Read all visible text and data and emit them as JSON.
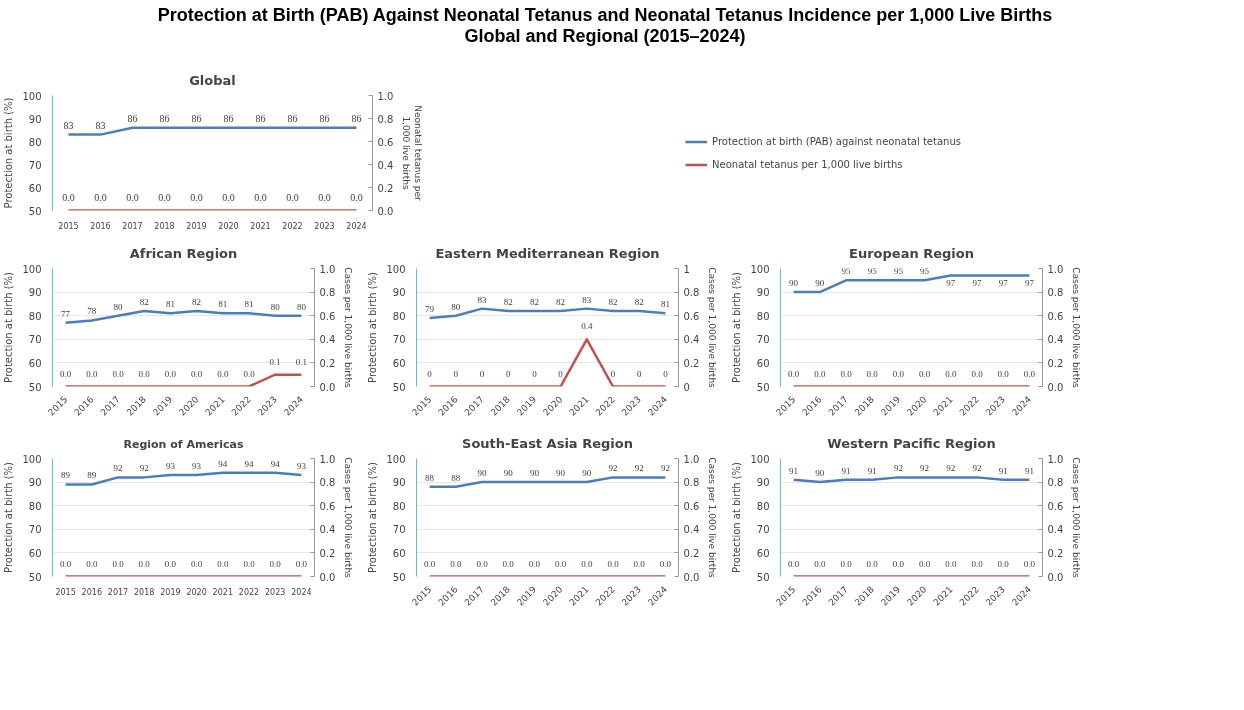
{
  "chart_data": [
    {
      "type": "other",
      "title": "Protection at Birth (PAB) Against Neonatal Tetanus and Neonatal Tetanus Incidence per 1,000 Live Births",
      "subtitle": "Global and Regional (2015–2024)"
    },
    {
      "type": "line",
      "title": "Global",
      "ylabel": "Protection at birth (%)",
      "y2label": "Neonatal tetanus per 1,000 live births",
      "categories": [
        "2015",
        "2016",
        "2017",
        "2018",
        "2019",
        "2020",
        "2021",
        "2022",
        "2023",
        "2024"
      ],
      "ylim": [
        50,
        100
      ],
      "yticks": [
        50,
        60,
        70,
        80,
        90,
        100
      ],
      "y2lim": [
        0,
        1
      ],
      "y2ticks": [
        {
          "value": 0,
          "label": "0.0"
        },
        {
          "value": 0.2,
          "label": "0.2"
        },
        {
          "value": 0.4,
          "label": "0.4"
        },
        {
          "value": 0.6,
          "label": "0.6"
        },
        {
          "value": 0.8,
          "label": "0.8"
        },
        {
          "value": 1,
          "label": "1.0"
        }
      ],
      "grid": false,
      "legend": "right",
      "series": [
        {
          "name": "Protection at birth (PAB) against neonatal tetanus",
          "color": "#4a7ebb",
          "values": [
            83,
            83,
            86,
            86,
            86,
            86,
            86,
            86,
            86,
            86
          ],
          "value_labels": [
            "83",
            "83",
            "86",
            "86",
            "86",
            "86",
            "86",
            "86",
            "86",
            "86"
          ]
        },
        {
          "name": "Neonatal tetanus per 1,000 live births",
          "color": "#c0504d",
          "axis": "y2",
          "values": [
            0,
            0,
            0,
            0,
            0,
            0,
            0,
            0,
            0,
            0
          ],
          "value_labels": [
            "0.0",
            "0.0",
            "0.0",
            "0.0",
            "0.0",
            "0.0",
            "0.0",
            "0.0",
            "0.0",
            "0.0"
          ]
        }
      ]
    },
    {
      "type": "line",
      "title": "African Region",
      "ylabel": "Protection at birth (%)",
      "y2label": "Cases per 1,000 live births",
      "categories": [
        "2015",
        "2016",
        "2017",
        "2018",
        "2019",
        "2020",
        "2021",
        "2022",
        "2023",
        "2024"
      ],
      "ylim": [
        50,
        100
      ],
      "yticks": [
        50,
        60,
        70,
        80,
        90,
        100
      ],
      "y2lim": [
        0,
        1
      ],
      "y2ticks": [
        {
          "value": 0,
          "label": "0.0"
        },
        {
          "value": 0.2,
          "label": "0.2"
        },
        {
          "value": 0.4,
          "label": "0.4"
        },
        {
          "value": 0.6,
          "label": "0.6"
        },
        {
          "value": 0.8,
          "label": "0.8"
        },
        {
          "value": 1,
          "label": "1.0"
        }
      ],
      "grid": "y",
      "legend": false,
      "series": [
        {
          "color": "#4a7ebb",
          "values": [
            77,
            78,
            80,
            82,
            81,
            82,
            81,
            81,
            80,
            80
          ],
          "value_labels": [
            "77",
            "78",
            "80",
            "82",
            "81",
            "82",
            "81",
            "81",
            "80",
            "80"
          ]
        },
        {
          "color": "#c0504d",
          "axis": "y2",
          "values": [
            0,
            0,
            0,
            0,
            0,
            0,
            0,
            0,
            0.1,
            0.1
          ],
          "value_labels": [
            "0.0",
            "0.0",
            "0.0",
            "0.0",
            "0.0",
            "0.0",
            "0.0",
            "0.0",
            "0.1",
            "0.1"
          ]
        }
      ]
    },
    {
      "type": "line",
      "title": "Eastern Mediterranean Region",
      "ylabel": "Protection at birth (%)",
      "y2label": "Cases per 1,000 live births",
      "categories": [
        "2015",
        "2016",
        "2017",
        "2018",
        "2019",
        "2020",
        "2021",
        "2022",
        "2023",
        "2024"
      ],
      "ylim": [
        50,
        100
      ],
      "yticks": [
        50,
        60,
        70,
        80,
        90,
        100
      ],
      "y2lim": [
        0,
        1
      ],
      "y2ticks": [
        0,
        0.2,
        0.4,
        0.6,
        0.8,
        1
      ],
      "grid": "y",
      "legend": false,
      "series": [
        {
          "color": "#4a7ebb",
          "values": [
            79,
            80,
            83,
            82,
            82,
            82,
            83,
            82,
            82,
            81
          ],
          "value_labels": [
            "79",
            "80",
            "83",
            "82",
            "82",
            "82",
            "83",
            "82",
            "82",
            "81"
          ]
        },
        {
          "color": "#c0504d",
          "axis": "y2",
          "values": [
            0,
            0,
            0,
            0,
            0,
            0,
            0.4,
            0,
            0,
            0
          ],
          "value_labels": [
            "0",
            "0",
            "0",
            "0",
            "0",
            "0",
            "0.4",
            "0",
            "0",
            "0"
          ]
        }
      ]
    },
    {
      "type": "line",
      "title": "European Region",
      "ylabel": "Protection at birth (%)",
      "y2label": "Cases per 1,000 live births",
      "categories": [
        "2015",
        "2016",
        "2017",
        "2018",
        "2019",
        "2020",
        "2021",
        "2022",
        "2023",
        "2024"
      ],
      "ylim": [
        50,
        100
      ],
      "yticks": [
        50,
        60,
        70,
        80,
        90,
        100
      ],
      "y2lim": [
        0,
        1
      ],
      "y2ticks": [
        {
          "value": 0,
          "label": "0.0"
        },
        {
          "value": 0.2,
          "label": "0.2"
        },
        {
          "value": 0.4,
          "label": "0.4"
        },
        {
          "value": 0.6,
          "label": "0.6"
        },
        {
          "value": 0.8,
          "label": "0.8"
        },
        {
          "value": 1,
          "label": "1.0"
        }
      ],
      "grid": "y",
      "legend": false,
      "series": [
        {
          "color": "#4a7ebb",
          "values": [
            90,
            90,
            95,
            95,
            95,
            95,
            97,
            97,
            97,
            97
          ],
          "value_labels": [
            "90",
            "90",
            "95",
            "95",
            "95",
            "95",
            "97",
            "97",
            "97",
            "97"
          ]
        },
        {
          "color": "#c0504d",
          "axis": "y2",
          "values": [
            0,
            0,
            0,
            0,
            0,
            0,
            0,
            0,
            0,
            0
          ],
          "value_labels": [
            "0.0",
            "0.0",
            "0.0",
            "0.0",
            "0.0",
            "0.0",
            "0.0",
            "0.0",
            "0.0",
            "0.0"
          ]
        }
      ]
    },
    {
      "type": "line",
      "title": "Region of Americas",
      "ylabel": "Protection at birth (%)",
      "y2label": "Cases per 1,000 live births",
      "categories": [
        "2015",
        "2016",
        "2017",
        "2018",
        "2019",
        "2020",
        "2021",
        "2022",
        "2023",
        "2024"
      ],
      "ylim": [
        50,
        100
      ],
      "yticks": [
        50,
        60,
        70,
        80,
        90,
        100
      ],
      "y2lim": [
        0,
        1
      ],
      "y2ticks": [
        {
          "value": 0,
          "label": "0.0"
        },
        {
          "value": 0.2,
          "label": "0.2"
        },
        {
          "value": 0.4,
          "label": "0.4"
        },
        {
          "value": 0.6,
          "label": "0.6"
        },
        {
          "value": 0.8,
          "label": "0.8"
        },
        {
          "value": 1,
          "label": "1.0"
        }
      ],
      "grid": "y",
      "legend": false,
      "series": [
        {
          "color": "#4a7ebb",
          "values": [
            89,
            89,
            92,
            92,
            93,
            93,
            94,
            94,
            94,
            93
          ],
          "value_labels": [
            "89",
            "89",
            "92",
            "92",
            "93",
            "93",
            "94",
            "94",
            "94",
            "93"
          ]
        },
        {
          "color": "#c0504d",
          "axis": "y2",
          "values": [
            0,
            0,
            0,
            0,
            0,
            0,
            0,
            0,
            0,
            0
          ],
          "value_labels": [
            "0.0",
            "0.0",
            "0.0",
            "0.0",
            "0.0",
            "0.0",
            "0.0",
            "0.0",
            "0.0",
            "0.0"
          ]
        }
      ]
    },
    {
      "type": "line",
      "title": "South-East Asia Region",
      "ylabel": "Protection at birth (%)",
      "y2label": "Cases per 1,000 live births",
      "categories": [
        "2015",
        "2016",
        "2017",
        "2018",
        "2019",
        "2020",
        "2021",
        "2022",
        "2023",
        "2024"
      ],
      "ylim": [
        50,
        100
      ],
      "yticks": [
        50,
        60,
        70,
        80,
        90,
        100
      ],
      "y2lim": [
        0,
        1
      ],
      "y2ticks": [
        {
          "value": 0,
          "label": "0.0"
        },
        {
          "value": 0.2,
          "label": "0.2"
        },
        {
          "value": 0.4,
          "label": "0.4"
        },
        {
          "value": 0.6,
          "label": "0.6"
        },
        {
          "value": 0.8,
          "label": "0.8"
        },
        {
          "value": 1,
          "label": "1.0"
        }
      ],
      "grid": "y",
      "legend": false,
      "series": [
        {
          "color": "#4a7ebb",
          "values": [
            88,
            88,
            90,
            90,
            90,
            90,
            90,
            92,
            92,
            92
          ],
          "value_labels": [
            "88",
            "88",
            "90",
            "90",
            "90",
            "90",
            "90",
            "92",
            "92",
            "92"
          ]
        },
        {
          "color": "#c0504d",
          "axis": "y2",
          "values": [
            0,
            0,
            0,
            0,
            0,
            0,
            0,
            0,
            0,
            0
          ],
          "value_labels": [
            "0.0",
            "0.0",
            "0.0",
            "0.0",
            "0.0",
            "0.0",
            "0.0",
            "0.0",
            "0.0",
            "0.0"
          ]
        }
      ]
    },
    {
      "type": "line",
      "title": "Western Pacific Region",
      "ylabel": "Protection at birth (%)",
      "y2label": "Cases per 1,000 live births",
      "categories": [
        "2015",
        "2016",
        "2017",
        "2018",
        "2019",
        "2020",
        "2021",
        "2022",
        "2023",
        "2024"
      ],
      "ylim": [
        50,
        100
      ],
      "yticks": [
        50,
        60,
        70,
        80,
        90,
        100
      ],
      "y2lim": [
        0,
        1
      ],
      "y2ticks": [
        {
          "value": 0,
          "label": "0.0"
        },
        {
          "value": 0.2,
          "label": "0.2"
        },
        {
          "value": 0.4,
          "label": "0.4"
        },
        {
          "value": 0.6,
          "label": "0.6"
        },
        {
          "value": 0.8,
          "label": "0.8"
        },
        {
          "value": 1,
          "label": "1.0"
        }
      ],
      "grid": "y",
      "legend": false,
      "series": [
        {
          "color": "#4a7ebb",
          "values": [
            91,
            90,
            91,
            91,
            92,
            92,
            92,
            92,
            91,
            91
          ],
          "value_labels": [
            "91",
            "90",
            "91",
            "91",
            "92",
            "92",
            "92",
            "92",
            "91",
            "91"
          ]
        },
        {
          "color": "#c0504d",
          "axis": "y2",
          "values": [
            0,
            0,
            0,
            0,
            0,
            0,
            0,
            0,
            0,
            0
          ],
          "value_labels": [
            "0.0",
            "0.0",
            "0.0",
            "0.0",
            "0.0",
            "0.0",
            "0.0",
            "0.0",
            "0.0",
            "0.0"
          ]
        }
      ]
    }
  ]
}
